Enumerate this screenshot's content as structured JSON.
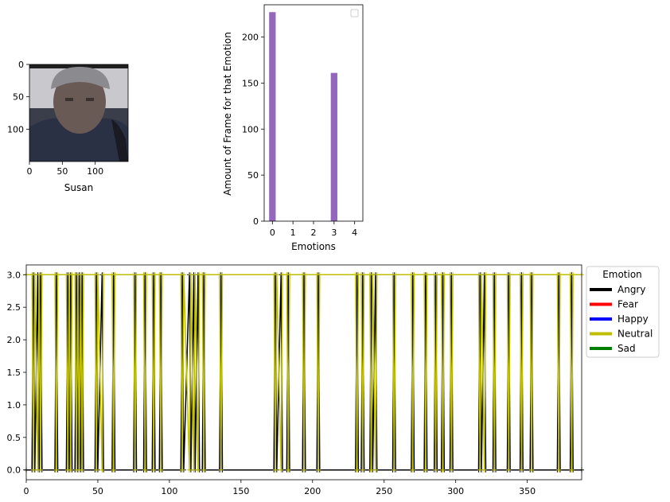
{
  "chart_data": [
    {
      "type": "image",
      "xlabel": "Susan",
      "xticks": [
        "0",
        "50",
        "100"
      ],
      "yticks": [
        "0",
        "50",
        "100"
      ],
      "xlim": [
        0,
        150
      ],
      "ylim": [
        150,
        0
      ],
      "image_description": "webcam face crop"
    },
    {
      "type": "bar",
      "xlabel": "Emotions",
      "ylabel": "Amount of Frame for that Emotion",
      "categories": [
        "0",
        "1",
        "2",
        "3",
        "4"
      ],
      "values": [
        227,
        0,
        0,
        161,
        0
      ],
      "bar_color": "#9467bd",
      "ylim": [
        0,
        235
      ],
      "yticks": [
        "0",
        "50",
        "100",
        "150",
        "200"
      ],
      "legend": "top-right (empty)"
    },
    {
      "type": "line",
      "xlim": [
        0,
        388
      ],
      "ylim": [
        -0.15,
        3.15
      ],
      "xticks": [
        "0",
        "50",
        "100",
        "150",
        "200",
        "250",
        "300",
        "350"
      ],
      "yticks": [
        "0.0",
        "0.5",
        "1.0",
        "1.5",
        "2.0",
        "2.5",
        "3.0"
      ],
      "legend": {
        "title": "Emotion",
        "placement": "outside-right",
        "entries": [
          {
            "label": "Angry",
            "color": "#000000"
          },
          {
            "label": "Fear",
            "color": "#ff0000"
          },
          {
            "label": "Happy",
            "color": "#0000ff"
          },
          {
            "label": "Neutral",
            "color": "#bfbf00"
          },
          {
            "label": "Sad",
            "color": "#008000"
          }
        ]
      },
      "series": [
        {
          "name": "Angry",
          "color": "#000000",
          "points": [
            [
              0,
              0
            ],
            [
              4,
              0
            ],
            [
              5,
              3
            ],
            [
              6,
              0
            ],
            [
              8,
              3
            ],
            [
              9,
              0
            ],
            [
              10,
              3
            ],
            [
              11,
              0
            ],
            [
              20,
              0
            ],
            [
              21,
              3
            ],
            [
              22,
              0
            ],
            [
              28,
              0
            ],
            [
              29,
              3
            ],
            [
              30,
              0
            ],
            [
              31,
              3
            ],
            [
              32,
              0
            ],
            [
              34,
              0
            ],
            [
              35,
              3
            ],
            [
              36,
              0
            ],
            [
              37,
              3
            ],
            [
              38,
              0
            ],
            [
              39,
              3
            ],
            [
              40,
              0
            ],
            [
              48,
              0
            ],
            [
              49,
              3
            ],
            [
              50,
              0
            ],
            [
              53,
              3
            ],
            [
              54,
              0
            ],
            [
              60,
              0
            ],
            [
              61,
              3
            ],
            [
              62,
              0
            ],
            [
              75,
              0
            ],
            [
              76,
              3
            ],
            [
              77,
              0
            ],
            [
              82,
              0
            ],
            [
              83,
              3
            ],
            [
              84,
              0
            ],
            [
              88,
              0
            ],
            [
              89,
              3
            ],
            [
              90,
              0
            ],
            [
              93,
              0
            ],
            [
              94,
              3
            ],
            [
              95,
              0
            ],
            [
              108,
              0
            ],
            [
              109,
              3
            ],
            [
              110,
              0
            ],
            [
              114,
              3
            ],
            [
              115,
              0
            ],
            [
              117,
              3
            ],
            [
              118,
              0
            ],
            [
              120,
              3
            ],
            [
              121,
              0
            ],
            [
              123,
              0
            ],
            [
              124,
              3
            ],
            [
              125,
              0
            ],
            [
              135,
              0
            ],
            [
              136,
              3
            ],
            [
              137,
              0
            ],
            [
              173,
              0
            ],
            [
              174,
              3
            ],
            [
              175,
              0
            ],
            [
              178,
              3
            ],
            [
              179,
              0
            ],
            [
              182,
              0
            ],
            [
              183,
              3
            ],
            [
              184,
              0
            ],
            [
              193,
              0
            ],
            [
              194,
              3
            ],
            [
              195,
              0
            ],
            [
              203,
              0
            ],
            [
              204,
              3
            ],
            [
              205,
              0
            ],
            [
              230,
              0
            ],
            [
              231,
              3
            ],
            [
              232,
              0
            ],
            [
              234,
              0
            ],
            [
              235,
              3
            ],
            [
              236,
              0
            ],
            [
              240,
              0
            ],
            [
              241,
              3
            ],
            [
              242,
              0
            ],
            [
              244,
              3
            ],
            [
              245,
              0
            ],
            [
              256,
              0
            ],
            [
              257,
              3
            ],
            [
              258,
              0
            ],
            [
              269,
              0
            ],
            [
              270,
              3
            ],
            [
              271,
              0
            ],
            [
              278,
              0
            ],
            [
              279,
              3
            ],
            [
              280,
              0
            ],
            [
              285,
              0
            ],
            [
              286,
              3
            ],
            [
              287,
              0
            ],
            [
              290,
              0
            ],
            [
              291,
              3
            ],
            [
              292,
              0
            ],
            [
              296,
              0
            ],
            [
              297,
              3
            ],
            [
              298,
              0
            ],
            [
              316,
              0
            ],
            [
              317,
              3
            ],
            [
              318,
              0
            ],
            [
              320,
              3
            ],
            [
              321,
              0
            ],
            [
              326,
              0
            ],
            [
              327,
              3
            ],
            [
              328,
              0
            ],
            [
              336,
              0
            ],
            [
              337,
              3
            ],
            [
              338,
              0
            ],
            [
              345,
              0
            ],
            [
              346,
              3
            ],
            [
              347,
              0
            ],
            [
              352,
              0
            ],
            [
              353,
              3
            ],
            [
              354,
              0
            ],
            [
              371,
              0
            ],
            [
              372,
              3
            ],
            [
              373,
              0
            ],
            [
              380,
              0
            ],
            [
              381,
              3
            ],
            [
              382,
              0
            ],
            [
              388,
              0
            ]
          ]
        },
        {
          "name": "Neutral",
          "color": "#bfbf00",
          "points": [
            [
              0,
              3
            ],
            [
              4,
              3
            ],
            [
              5,
              0
            ],
            [
              6,
              3
            ],
            [
              8,
              0
            ],
            [
              9,
              3
            ],
            [
              10,
              0
            ],
            [
              11,
              3
            ],
            [
              20,
              3
            ],
            [
              21,
              0
            ],
            [
              22,
              3
            ],
            [
              28,
              3
            ],
            [
              29,
              0
            ],
            [
              30,
              3
            ],
            [
              31,
              0
            ],
            [
              32,
              3
            ],
            [
              34,
              3
            ],
            [
              35,
              0
            ],
            [
              36,
              3
            ],
            [
              37,
              0
            ],
            [
              38,
              3
            ],
            [
              39,
              0
            ],
            [
              40,
              3
            ],
            [
              48,
              3
            ],
            [
              49,
              0
            ],
            [
              50,
              3
            ],
            [
              53,
              0
            ],
            [
              54,
              3
            ],
            [
              60,
              3
            ],
            [
              61,
              0
            ],
            [
              62,
              3
            ],
            [
              75,
              3
            ],
            [
              76,
              0
            ],
            [
              77,
              3
            ],
            [
              82,
              3
            ],
            [
              83,
              0
            ],
            [
              84,
              3
            ],
            [
              88,
              3
            ],
            [
              89,
              0
            ],
            [
              90,
              3
            ],
            [
              93,
              3
            ],
            [
              94,
              0
            ],
            [
              95,
              3
            ],
            [
              108,
              3
            ],
            [
              109,
              0
            ],
            [
              110,
              3
            ],
            [
              114,
              0
            ],
            [
              115,
              3
            ],
            [
              117,
              0
            ],
            [
              118,
              3
            ],
            [
              120,
              0
            ],
            [
              121,
              3
            ],
            [
              123,
              3
            ],
            [
              124,
              0
            ],
            [
              125,
              3
            ],
            [
              135,
              3
            ],
            [
              136,
              0
            ],
            [
              137,
              3
            ],
            [
              173,
              3
            ],
            [
              174,
              0
            ],
            [
              175,
              3
            ],
            [
              178,
              0
            ],
            [
              179,
              3
            ],
            [
              182,
              3
            ],
            [
              183,
              0
            ],
            [
              184,
              3
            ],
            [
              193,
              3
            ],
            [
              194,
              0
            ],
            [
              195,
              3
            ],
            [
              203,
              3
            ],
            [
              204,
              0
            ],
            [
              205,
              3
            ],
            [
              230,
              3
            ],
            [
              231,
              0
            ],
            [
              232,
              3
            ],
            [
              234,
              3
            ],
            [
              235,
              0
            ],
            [
              236,
              3
            ],
            [
              240,
              3
            ],
            [
              241,
              0
            ],
            [
              242,
              3
            ],
            [
              244,
              0
            ],
            [
              245,
              3
            ],
            [
              256,
              3
            ],
            [
              257,
              0
            ],
            [
              258,
              3
            ],
            [
              269,
              3
            ],
            [
              270,
              0
            ],
            [
              271,
              3
            ],
            [
              278,
              3
            ],
            [
              279,
              0
            ],
            [
              280,
              3
            ],
            [
              285,
              3
            ],
            [
              286,
              0
            ],
            [
              287,
              3
            ],
            [
              290,
              3
            ],
            [
              291,
              0
            ],
            [
              292,
              3
            ],
            [
              296,
              3
            ],
            [
              297,
              0
            ],
            [
              298,
              3
            ],
            [
              316,
              3
            ],
            [
              317,
              0
            ],
            [
              318,
              3
            ],
            [
              320,
              0
            ],
            [
              321,
              3
            ],
            [
              326,
              3
            ],
            [
              327,
              0
            ],
            [
              328,
              3
            ],
            [
              336,
              3
            ],
            [
              337,
              0
            ],
            [
              338,
              3
            ],
            [
              345,
              3
            ],
            [
              346,
              0
            ],
            [
              347,
              3
            ],
            [
              352,
              3
            ],
            [
              353,
              0
            ],
            [
              354,
              3
            ],
            [
              371,
              3
            ],
            [
              372,
              0
            ],
            [
              373,
              3
            ],
            [
              380,
              3
            ],
            [
              381,
              0
            ],
            [
              382,
              3
            ],
            [
              388,
              3
            ]
          ]
        }
      ]
    }
  ]
}
